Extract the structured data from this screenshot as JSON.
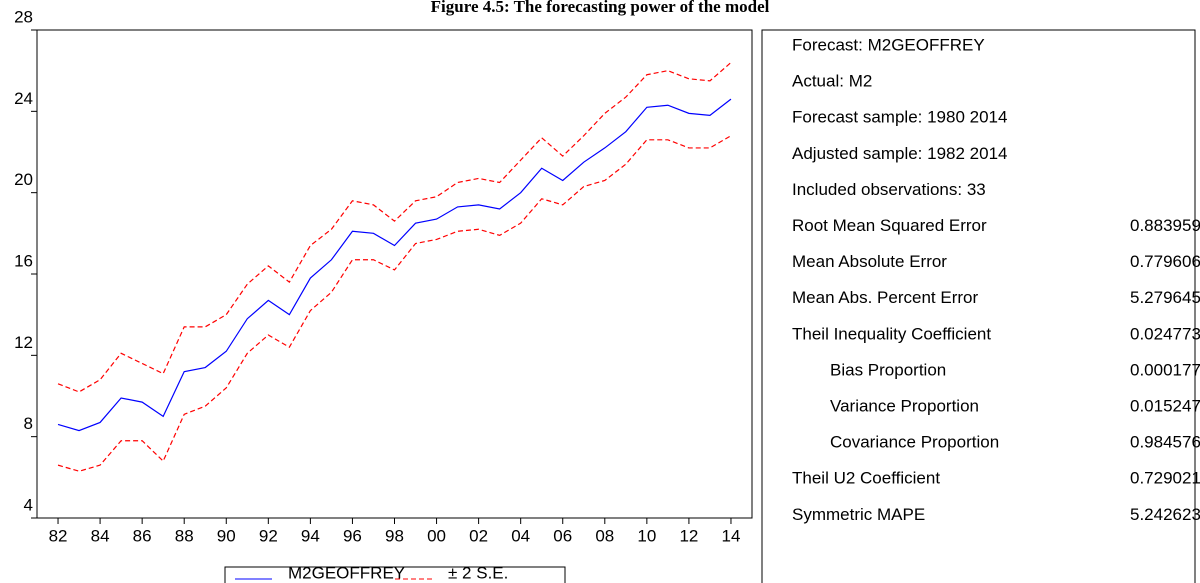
{
  "chart_data": {
    "type": "line",
    "title": "Figure 4.5: The forecasting power of the model",
    "x": [
      1982,
      1983,
      1984,
      1985,
      1986,
      1987,
      1988,
      1989,
      1990,
      1991,
      1992,
      1993,
      1994,
      1995,
      1996,
      1997,
      1998,
      1999,
      2000,
      2001,
      2002,
      2003,
      2004,
      2005,
      2006,
      2007,
      2008,
      2009,
      2010,
      2011,
      2012,
      2013,
      2014
    ],
    "xlim": [
      1981,
      2015
    ],
    "xticks": [
      {
        "value": 1982,
        "label": "82"
      },
      {
        "value": 1984,
        "label": "84"
      },
      {
        "value": 1986,
        "label": "86"
      },
      {
        "value": 1988,
        "label": "88"
      },
      {
        "value": 1990,
        "label": "90"
      },
      {
        "value": 1992,
        "label": "92"
      },
      {
        "value": 1994,
        "label": "94"
      },
      {
        "value": 1996,
        "label": "96"
      },
      {
        "value": 1998,
        "label": "98"
      },
      {
        "value": 2000,
        "label": "00"
      },
      {
        "value": 2002,
        "label": "02"
      },
      {
        "value": 2004,
        "label": "04"
      },
      {
        "value": 2006,
        "label": "06"
      },
      {
        "value": 2008,
        "label": "08"
      },
      {
        "value": 2010,
        "label": "10"
      },
      {
        "value": 2012,
        "label": "12"
      },
      {
        "value": 2014,
        "label": "14"
      }
    ],
    "ylim": [
      4,
      28
    ],
    "yticks": [
      4,
      8,
      12,
      16,
      20,
      24,
      28
    ],
    "series": [
      {
        "name": "M2GEOFFREY",
        "color": "#0000ff",
        "values": [
          8.6,
          8.3,
          8.7,
          9.9,
          9.7,
          9.0,
          11.2,
          11.4,
          12.2,
          13.8,
          14.7,
          14.0,
          15.8,
          16.7,
          18.1,
          18.0,
          17.4,
          18.5,
          18.7,
          19.3,
          19.4,
          19.2,
          20.0,
          21.2,
          20.6,
          21.5,
          22.2,
          23.0,
          24.2,
          24.3,
          23.9,
          23.8,
          24.6
        ]
      },
      {
        "name": "± 2 S.E.",
        "color": "#ff0000",
        "dashed": true,
        "upper": [
          10.6,
          10.2,
          10.8,
          12.1,
          11.6,
          11.1,
          13.4,
          13.4,
          14.0,
          15.5,
          16.4,
          15.6,
          17.4,
          18.2,
          19.6,
          19.4,
          18.6,
          19.6,
          19.8,
          20.5,
          20.7,
          20.5,
          21.6,
          22.7,
          21.8,
          22.8,
          23.9,
          24.7,
          25.8,
          26.0,
          25.6,
          25.5,
          26.4
        ],
        "lower": [
          6.6,
          6.3,
          6.6,
          7.8,
          7.8,
          6.8,
          9.1,
          9.5,
          10.4,
          12.1,
          13.0,
          12.4,
          14.2,
          15.1,
          16.7,
          16.7,
          16.2,
          17.5,
          17.7,
          18.1,
          18.2,
          17.9,
          18.5,
          19.7,
          19.4,
          20.3,
          20.6,
          21.4,
          22.6,
          22.6,
          22.2,
          22.2,
          22.8
        ]
      }
    ],
    "stats": [
      {
        "label": "Forecast: M2GEOFFREY"
      },
      {
        "label": "Actual: M2"
      },
      {
        "label": "Forecast sample: 1980 2014"
      },
      {
        "label": "Adjusted sample: 1982 2014"
      },
      {
        "label": "Included observations: 33"
      },
      {
        "label": "Root Mean Squared Error",
        "value": 0.883959
      },
      {
        "label": "Mean Absolute Error",
        "value": 0.779606
      },
      {
        "label": "Mean Abs. Percent Error",
        "value": 5.279645
      },
      {
        "label": "Theil Inequality Coefficient",
        "value": 0.024773
      },
      {
        "label": "Bias Proportion",
        "value": 0.000177,
        "indent": true
      },
      {
        "label": "Variance Proportion",
        "value": 0.015247,
        "indent": true
      },
      {
        "label": "Covariance Proportion",
        "value": 0.984576,
        "indent": true
      },
      {
        "label": "Theil U2 Coefficient",
        "value": 0.729021
      },
      {
        "label": "Symmetric MAPE",
        "value": 5.242623
      }
    ]
  }
}
